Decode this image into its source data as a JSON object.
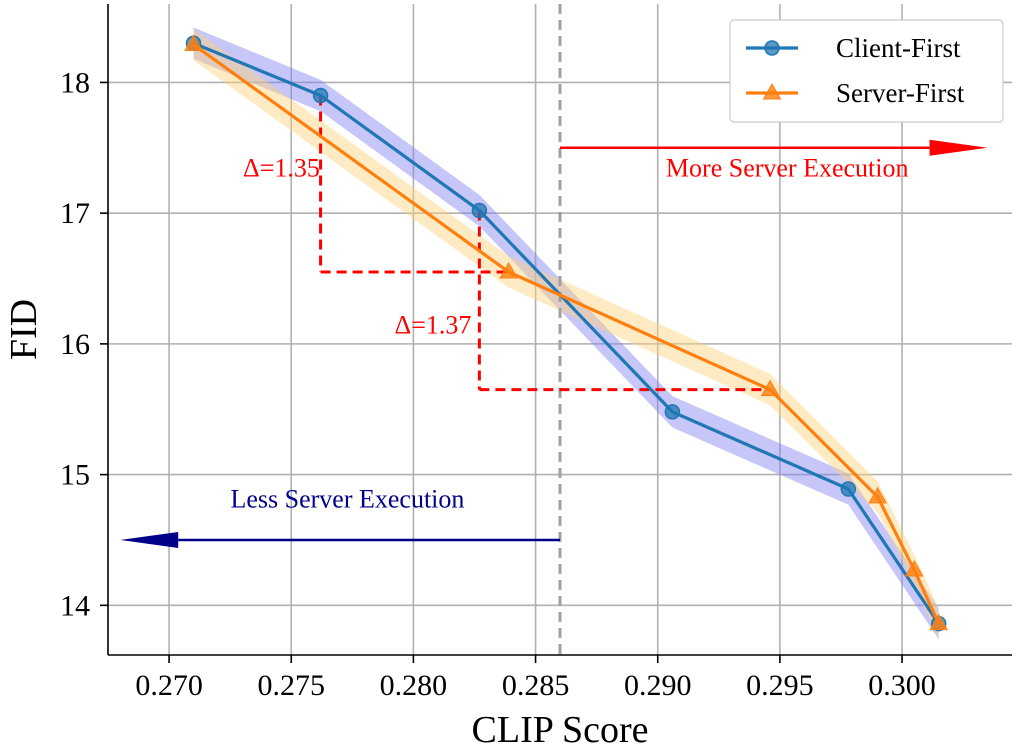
{
  "chart_data": {
    "type": "line",
    "title": "",
    "xlabel": "CLIP Score",
    "ylabel": "FID",
    "xlim": [
      0.2675,
      0.3045
    ],
    "ylim": [
      13.62,
      18.6
    ],
    "grid": true,
    "legend_position": "top-right",
    "x_ticks": [
      {
        "value": 0.27,
        "label": "0.270"
      },
      {
        "value": 0.275,
        "label": "0.275"
      },
      {
        "value": 0.28,
        "label": "0.280"
      },
      {
        "value": 0.285,
        "label": "0.285"
      },
      {
        "value": 0.29,
        "label": "0.290"
      },
      {
        "value": 0.295,
        "label": "0.295"
      },
      {
        "value": 0.3,
        "label": "0.300"
      }
    ],
    "y_ticks": [
      {
        "value": 14,
        "label": "14"
      },
      {
        "value": 15,
        "label": "15"
      },
      {
        "value": 16,
        "label": "16"
      },
      {
        "value": 17,
        "label": "17"
      },
      {
        "value": 18,
        "label": "18"
      }
    ],
    "series": [
      {
        "name": "Client-First",
        "color": "#1f77b4",
        "band_color": "#8080f0",
        "band_halfwidth": 0.12,
        "marker": "circle",
        "x": [
          0.271,
          0.2762,
          0.2827,
          0.2906,
          0.2978,
          0.3015
        ],
        "y": [
          18.3,
          17.9,
          17.02,
          15.48,
          14.89,
          13.86
        ]
      },
      {
        "name": "Server-First",
        "color": "#ff7f0e",
        "band_color": "#ffd27a",
        "band_halfwidth": 0.12,
        "marker": "triangle",
        "x": [
          0.271,
          0.2839,
          0.2946,
          0.299,
          0.3005,
          0.3015
        ],
        "y": [
          18.29,
          16.55,
          15.65,
          14.83,
          14.27,
          13.86
        ]
      }
    ],
    "reference_line": {
      "x": 0.286,
      "color": "#a0a0a0"
    },
    "annotations": {
      "delta1": {
        "label": "Δ=1.35",
        "label_x": 0.2746,
        "label_y": 17.28,
        "vertical_x": 0.2762,
        "y_top": 17.9,
        "y_bottom": 16.55,
        "horizontal_to_x": 0.2839,
        "color": "#ff0000"
      },
      "delta2": {
        "label": "Δ=1.37",
        "label_x": 0.2808,
        "label_y": 16.08,
        "vertical_x": 0.2827,
        "y_top": 17.02,
        "y_bottom": 15.65,
        "horizontal_to_x": 0.2946,
        "color": "#ff0000"
      },
      "more_server": {
        "label": "More Server Execution",
        "label_x": 0.2953,
        "label_y": 17.28,
        "arrow_from_x": 0.286,
        "arrow_to_x": 0.3035,
        "arrow_y": 17.5,
        "color": "#ff0000"
      },
      "less_server": {
        "label": "Less Server Execution",
        "label_x": 0.2773,
        "label_y": 14.75,
        "arrow_from_x": 0.286,
        "arrow_to_x": 0.268,
        "arrow_y": 14.5,
        "color": "#00008b"
      }
    }
  }
}
